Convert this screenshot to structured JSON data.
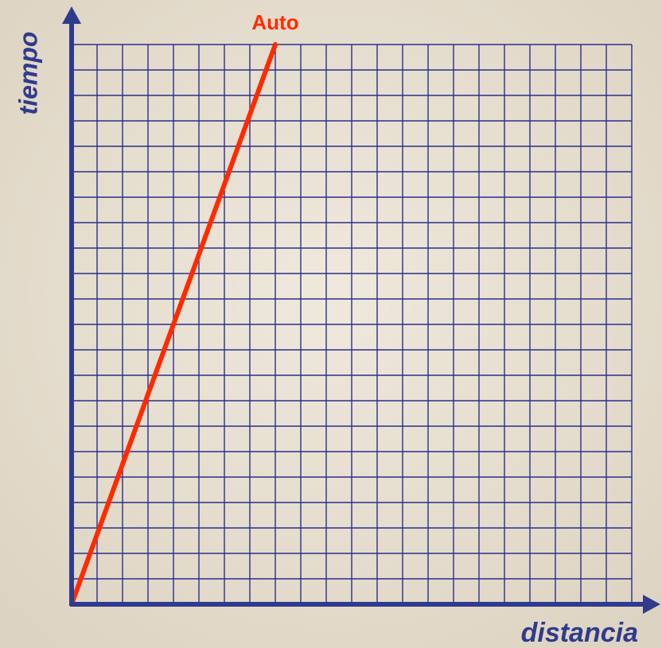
{
  "chart_data": {
    "type": "line",
    "xlabel": "distancia",
    "ylabel": "tiempo",
    "x": [
      0,
      8
    ],
    "series": [
      {
        "name": "Auto",
        "color": "#ff2a00",
        "values": [
          0,
          22
        ]
      }
    ],
    "xlim": [
      0,
      22
    ],
    "ylim": [
      0,
      22
    ],
    "xticks": [
      0,
      1,
      2,
      3,
      4,
      5,
      6,
      7,
      8,
      9,
      10,
      11,
      12,
      13,
      14,
      15,
      16,
      17,
      18,
      19,
      20,
      21,
      22
    ],
    "yticks": [
      0,
      1,
      2,
      3,
      4,
      5,
      6,
      7,
      8,
      9,
      10,
      11,
      12,
      13,
      14,
      15,
      16,
      17,
      18,
      19,
      20,
      21,
      22
    ],
    "grid": true
  }
}
